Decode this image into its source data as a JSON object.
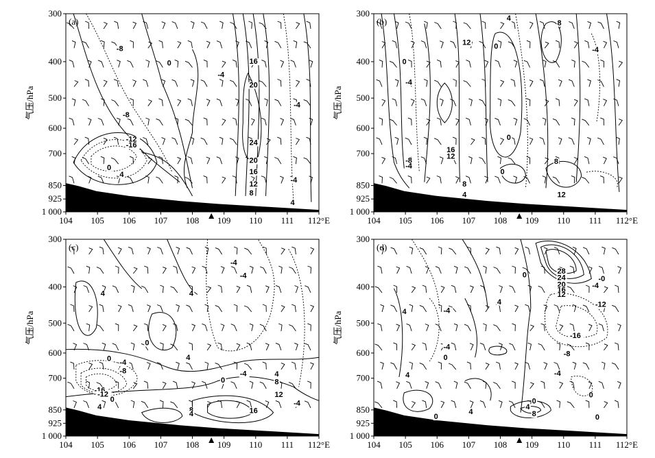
{
  "chart_data": [
    {
      "type": "contour",
      "panel": "(a)",
      "xlabel": "",
      "ylabel": "气压/hPa",
      "x_ticks": [
        "104",
        "105",
        "106",
        "107",
        "108",
        "109",
        "110",
        "111",
        "112°E"
      ],
      "y_ticks": [
        "300",
        "400",
        "500",
        "600",
        "700",
        "850",
        "925",
        "1 000"
      ],
      "xlim": [
        104,
        112
      ],
      "ylim": [
        300,
        1000
      ],
      "station_marker_lon": 108.6,
      "contour_labels": [
        {
          "text": "-8",
          "lon": 105.6,
          "p": 378
        },
        {
          "text": "0",
          "lon": 107.2,
          "p": 410
        },
        {
          "text": "-4",
          "lon": 108.8,
          "p": 442
        },
        {
          "text": "16",
          "lon": 109.8,
          "p": 406
        },
        {
          "text": "20",
          "lon": 109.8,
          "p": 471
        },
        {
          "text": "-4",
          "lon": 111.2,
          "p": 531
        },
        {
          "text": "-8",
          "lon": 105.8,
          "p": 564
        },
        {
          "text": "-12",
          "lon": 105.9,
          "p": 653
        },
        {
          "text": "-16",
          "lon": 105.9,
          "p": 676
        },
        {
          "text": "24",
          "lon": 109.8,
          "p": 666
        },
        {
          "text": "20",
          "lon": 109.8,
          "p": 744
        },
        {
          "text": "0",
          "lon": 105.3,
          "p": 778
        },
        {
          "text": "4",
          "lon": 105.7,
          "p": 810
        },
        {
          "text": "16",
          "lon": 109.8,
          "p": 797
        },
        {
          "text": "12",
          "lon": 109.8,
          "p": 855
        },
        {
          "text": "-4",
          "lon": 111.1,
          "p": 836
        },
        {
          "text": "8",
          "lon": 109.8,
          "p": 906
        },
        {
          "text": "4",
          "lon": 111.1,
          "p": 960
        }
      ]
    },
    {
      "type": "contour",
      "panel": "(b)",
      "xlabel": "",
      "ylabel": "气压/hPa",
      "x_ticks": [
        "104",
        "105",
        "106",
        "107",
        "108",
        "109",
        "110",
        "111",
        "112°E"
      ],
      "y_ticks": [
        "300",
        "400",
        "500",
        "600",
        "700",
        "850",
        "925",
        "1 000"
      ],
      "xlim": [
        104,
        112
      ],
      "ylim": [
        300,
        1000
      ],
      "station_marker_lon": 108.6,
      "contour_labels": [
        {
          "text": "4",
          "lon": 108.2,
          "p": 314
        },
        {
          "text": "8",
          "lon": 109.8,
          "p": 324
        },
        {
          "text": "12",
          "lon": 106.8,
          "p": 365
        },
        {
          "text": "0",
          "lon": 107.8,
          "p": 373
        },
        {
          "text": "-4",
          "lon": 110.9,
          "p": 380
        },
        {
          "text": "0",
          "lon": 104.9,
          "p": 407
        },
        {
          "text": "-4",
          "lon": 105.0,
          "p": 463
        },
        {
          "text": "0",
          "lon": 108.2,
          "p": 646
        },
        {
          "text": "16",
          "lon": 106.3,
          "p": 694
        },
        {
          "text": "12",
          "lon": 106.3,
          "p": 724
        },
        {
          "text": "-8",
          "lon": 105.0,
          "p": 743
        },
        {
          "text": "-4",
          "lon": 105.0,
          "p": 769
        },
        {
          "text": "8",
          "lon": 109.7,
          "p": 749
        },
        {
          "text": "0",
          "lon": 108.0,
          "p": 797
        },
        {
          "text": "8",
          "lon": 106.8,
          "p": 856
        },
        {
          "text": "4",
          "lon": 106.8,
          "p": 914
        },
        {
          "text": "12",
          "lon": 109.8,
          "p": 915
        }
      ]
    },
    {
      "type": "contour",
      "panel": "(c)",
      "xlabel": "",
      "ylabel": "气压/hPa",
      "x_ticks": [
        "104",
        "105",
        "106",
        "107",
        "108",
        "109",
        "110",
        "111",
        "112°E"
      ],
      "y_ticks": [
        "300",
        "400",
        "500",
        "600",
        "700",
        "850",
        "925",
        "1 000"
      ],
      "xlim": [
        104,
        112
      ],
      "ylim": [
        300,
        1000
      ],
      "station_marker_lon": 108.6,
      "contour_labels": [
        {
          "text": "-4",
          "lon": 109.2,
          "p": 354
        },
        {
          "text": "-4",
          "lon": 109.5,
          "p": 381
        },
        {
          "text": "4",
          "lon": 105.1,
          "p": 425
        },
        {
          "text": "4",
          "lon": 107.9,
          "p": 425
        },
        {
          "text": "0",
          "lon": 106.5,
          "p": 574
        },
        {
          "text": "0",
          "lon": 105.3,
          "p": 631
        },
        {
          "text": "-4",
          "lon": 105.7,
          "p": 647
        },
        {
          "text": "-8",
          "lon": 105.7,
          "p": 680
        },
        {
          "text": "4",
          "lon": 107.8,
          "p": 628
        },
        {
          "text": "-4",
          "lon": 109.5,
          "p": 691
        },
        {
          "text": "4",
          "lon": 110.6,
          "p": 693
        },
        {
          "text": "0",
          "lon": 108.9,
          "p": 721
        },
        {
          "text": "8",
          "lon": 110.6,
          "p": 729
        },
        {
          "text": "-16",
          "lon": 104.9,
          "p": 767
        },
        {
          "text": "-12",
          "lon": 105.0,
          "p": 787
        },
        {
          "text": "0",
          "lon": 105.4,
          "p": 811
        },
        {
          "text": "12",
          "lon": 110.6,
          "p": 789
        },
        {
          "text": "4",
          "lon": 105.0,
          "p": 848
        },
        {
          "text": "-4",
          "lon": 111.2,
          "p": 829
        },
        {
          "text": "8",
          "lon": 107.9,
          "p": 865
        },
        {
          "text": "4",
          "lon": 107.9,
          "p": 886
        },
        {
          "text": "16",
          "lon": 109.8,
          "p": 867
        }
      ]
    },
    {
      "type": "contour",
      "panel": "(d)",
      "xlabel": "",
      "ylabel": "气压/hPa",
      "x_ticks": [
        "104",
        "105",
        "106",
        "107",
        "108",
        "109",
        "110",
        "111",
        "112°E"
      ],
      "y_ticks": [
        "300",
        "400",
        "500",
        "600",
        "700",
        "850",
        "925",
        "1 000"
      ],
      "xlim": [
        104,
        112
      ],
      "ylim": [
        300,
        1000
      ],
      "station_marker_lon": 108.6,
      "contour_labels": [
        {
          "text": "28",
          "lon": 109.8,
          "p": 372
        },
        {
          "text": "24",
          "lon": 109.8,
          "p": 386
        },
        {
          "text": "20",
          "lon": 109.8,
          "p": 400
        },
        {
          "text": "16",
          "lon": 109.8,
          "p": 414
        },
        {
          "text": "12",
          "lon": 109.8,
          "p": 428
        },
        {
          "text": "0",
          "lon": 108.7,
          "p": 380
        },
        {
          "text": "-0",
          "lon": 111.1,
          "p": 388
        },
        {
          "text": "-4",
          "lon": 110.9,
          "p": 403
        },
        {
          "text": "-12",
          "lon": 111.0,
          "p": 455
        },
        {
          "text": "4",
          "lon": 104.9,
          "p": 475
        },
        {
          "text": "-4",
          "lon": 106.2,
          "p": 472
        },
        {
          "text": "4",
          "lon": 107.9,
          "p": 448
        },
        {
          "text": "-16",
          "lon": 110.2,
          "p": 550
        },
        {
          "text": "-4",
          "lon": 106.2,
          "p": 588
        },
        {
          "text": "0",
          "lon": 106.2,
          "p": 628
        },
        {
          "text": "-8",
          "lon": 110.0,
          "p": 613
        },
        {
          "text": "4",
          "lon": 105.0,
          "p": 697
        },
        {
          "text": "-4",
          "lon": 109.7,
          "p": 690
        },
        {
          "text": "0",
          "lon": 110.8,
          "p": 791
        },
        {
          "text": "0",
          "lon": 109.0,
          "p": 819
        },
        {
          "text": "4",
          "lon": 108.8,
          "p": 847
        },
        {
          "text": "4",
          "lon": 107.0,
          "p": 873
        },
        {
          "text": "0",
          "lon": 105.9,
          "p": 901
        },
        {
          "text": "8",
          "lon": 109.0,
          "p": 886
        },
        {
          "text": "0",
          "lon": 111.0,
          "p": 905
        }
      ]
    }
  ]
}
